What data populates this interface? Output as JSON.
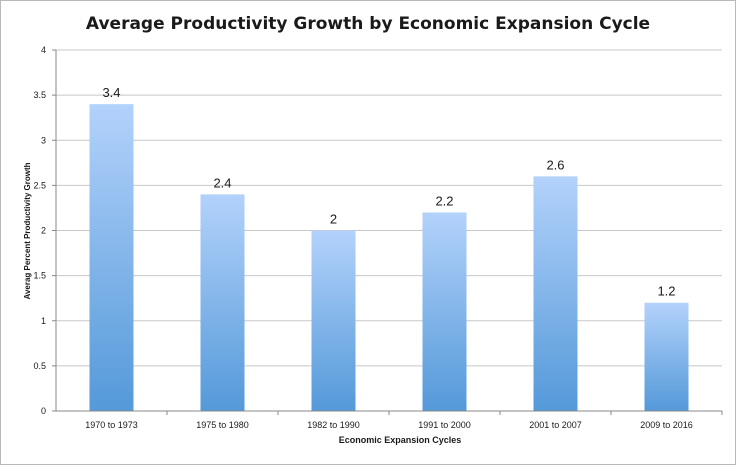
{
  "chart_data": {
    "type": "bar",
    "title": "Average Productivity Growth by Economic Expansion Cycle",
    "xlabel": "Economic Expansion Cycles",
    "ylabel": "Averag Percent Productivity Growth",
    "categories": [
      "1970 to 1973",
      "1975 to 1980",
      "1982 to 1990",
      "1991 to 2000",
      "2001 to 2007",
      "2009 to 2016"
    ],
    "values": [
      3.4,
      2.4,
      2,
      2.2,
      2.6,
      1.2
    ],
    "data_labels": [
      "3.4",
      "2.4",
      "2",
      "2.2",
      "2.6",
      "1.2"
    ],
    "ylim": [
      0,
      4
    ],
    "y_ticks": [
      "0",
      "0.5",
      "1",
      "1.5",
      "2",
      "2.5",
      "3",
      "3.5",
      "4"
    ],
    "grid": true,
    "legend": "none",
    "colors": {
      "bar_top": "#b3d2fb",
      "bar_bottom": "#5499d9",
      "grid": "#c8c8c8",
      "axis": "#888888",
      "text": "#1a1a1a"
    }
  }
}
